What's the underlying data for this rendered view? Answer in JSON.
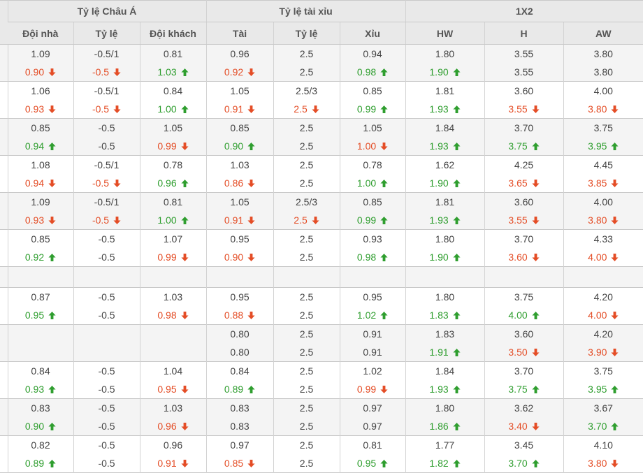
{
  "table": {
    "colors": {
      "header_bg": "#e9e9e9",
      "row_alt_bg": "#f4f4f4",
      "row_bg": "#ffffff",
      "border": "#c9c9c9",
      "text": "#444444",
      "header_text": "#555555",
      "up_green": "#2f9e2f",
      "down_red": "#e44d26"
    },
    "group_headers": [
      {
        "label": "Tỷ lệ Châu Á",
        "span": 3
      },
      {
        "label": "Tỷ lệ tài xỉu",
        "span": 3
      },
      {
        "label": "1X2",
        "span": 3
      }
    ],
    "column_headers": [
      "Đội nhà",
      "Tỷ lệ",
      "Đội khách",
      "Tài",
      "Tỷ lệ",
      "Xỉu",
      "HW",
      "H",
      "AW"
    ],
    "blocks": [
      {
        "shade": "gray",
        "rows": [
          [
            {
              "v": "1.09"
            },
            {
              "v": "-0.5/1"
            },
            {
              "v": "0.81"
            },
            {
              "v": "0.96"
            },
            {
              "v": "2.5"
            },
            {
              "v": "0.94"
            },
            {
              "v": "1.80"
            },
            {
              "v": "3.55"
            },
            {
              "v": "3.80"
            }
          ],
          [
            {
              "v": "0.90",
              "t": "down"
            },
            {
              "v": "-0.5",
              "t": "down"
            },
            {
              "v": "1.03",
              "t": "up"
            },
            {
              "v": "0.92",
              "t": "down"
            },
            {
              "v": "2.5"
            },
            {
              "v": "0.98",
              "t": "up"
            },
            {
              "v": "1.90",
              "t": "up"
            },
            {
              "v": "3.55"
            },
            {
              "v": "3.80"
            }
          ]
        ]
      },
      {
        "shade": "white",
        "rows": [
          [
            {
              "v": "1.06"
            },
            {
              "v": "-0.5/1"
            },
            {
              "v": "0.84"
            },
            {
              "v": "1.05"
            },
            {
              "v": "2.5/3"
            },
            {
              "v": "0.85"
            },
            {
              "v": "1.81"
            },
            {
              "v": "3.60"
            },
            {
              "v": "4.00"
            }
          ],
          [
            {
              "v": "0.93",
              "t": "down"
            },
            {
              "v": "-0.5",
              "t": "down"
            },
            {
              "v": "1.00",
              "t": "up"
            },
            {
              "v": "0.91",
              "t": "down"
            },
            {
              "v": "2.5",
              "t": "down"
            },
            {
              "v": "0.99",
              "t": "up"
            },
            {
              "v": "1.93",
              "t": "up"
            },
            {
              "v": "3.55",
              "t": "down"
            },
            {
              "v": "3.80",
              "t": "down"
            }
          ]
        ]
      },
      {
        "shade": "gray",
        "rows": [
          [
            {
              "v": "0.85"
            },
            {
              "v": "-0.5"
            },
            {
              "v": "1.05"
            },
            {
              "v": "0.85"
            },
            {
              "v": "2.5"
            },
            {
              "v": "1.05"
            },
            {
              "v": "1.84"
            },
            {
              "v": "3.70"
            },
            {
              "v": "3.75"
            }
          ],
          [
            {
              "v": "0.94",
              "t": "up"
            },
            {
              "v": "-0.5"
            },
            {
              "v": "0.99",
              "t": "down"
            },
            {
              "v": "0.90",
              "t": "up"
            },
            {
              "v": "2.5"
            },
            {
              "v": "1.00",
              "t": "down"
            },
            {
              "v": "1.93",
              "t": "up"
            },
            {
              "v": "3.75",
              "t": "up"
            },
            {
              "v": "3.95",
              "t": "up"
            }
          ]
        ]
      },
      {
        "shade": "white",
        "rows": [
          [
            {
              "v": "1.08"
            },
            {
              "v": "-0.5/1"
            },
            {
              "v": "0.78"
            },
            {
              "v": "1.03"
            },
            {
              "v": "2.5"
            },
            {
              "v": "0.78"
            },
            {
              "v": "1.62"
            },
            {
              "v": "4.25"
            },
            {
              "v": "4.45"
            }
          ],
          [
            {
              "v": "0.94",
              "t": "down"
            },
            {
              "v": "-0.5",
              "t": "down"
            },
            {
              "v": "0.96",
              "t": "up"
            },
            {
              "v": "0.86",
              "t": "down"
            },
            {
              "v": "2.5"
            },
            {
              "v": "1.00",
              "t": "up"
            },
            {
              "v": "1.90",
              "t": "up"
            },
            {
              "v": "3.65",
              "t": "down"
            },
            {
              "v": "3.85",
              "t": "down"
            }
          ]
        ]
      },
      {
        "shade": "gray",
        "rows": [
          [
            {
              "v": "1.09"
            },
            {
              "v": "-0.5/1"
            },
            {
              "v": "0.81"
            },
            {
              "v": "1.05"
            },
            {
              "v": "2.5/3"
            },
            {
              "v": "0.85"
            },
            {
              "v": "1.81"
            },
            {
              "v": "3.60"
            },
            {
              "v": "4.00"
            }
          ],
          [
            {
              "v": "0.93",
              "t": "down"
            },
            {
              "v": "-0.5",
              "t": "down"
            },
            {
              "v": "1.00",
              "t": "up"
            },
            {
              "v": "0.91",
              "t": "down"
            },
            {
              "v": "2.5",
              "t": "down"
            },
            {
              "v": "0.99",
              "t": "up"
            },
            {
              "v": "1.93",
              "t": "up"
            },
            {
              "v": "3.55",
              "t": "down"
            },
            {
              "v": "3.80",
              "t": "down"
            }
          ]
        ]
      },
      {
        "shade": "white",
        "rows": [
          [
            {
              "v": "0.85"
            },
            {
              "v": "-0.5"
            },
            {
              "v": "1.07"
            },
            {
              "v": "0.95"
            },
            {
              "v": "2.5"
            },
            {
              "v": "0.93"
            },
            {
              "v": "1.80"
            },
            {
              "v": "3.70"
            },
            {
              "v": "4.33"
            }
          ],
          [
            {
              "v": "0.92",
              "t": "up"
            },
            {
              "v": "-0.5"
            },
            {
              "v": "0.99",
              "t": "down"
            },
            {
              "v": "0.90",
              "t": "down"
            },
            {
              "v": "2.5"
            },
            {
              "v": "0.98",
              "t": "up"
            },
            {
              "v": "1.90",
              "t": "up"
            },
            {
              "v": "3.60",
              "t": "down"
            },
            {
              "v": "4.00",
              "t": "down"
            }
          ]
        ]
      },
      {
        "shade": "gray",
        "spacer": true,
        "rows": [
          [
            {
              "v": ""
            },
            {
              "v": ""
            },
            {
              "v": ""
            },
            {
              "v": ""
            },
            {
              "v": ""
            },
            {
              "v": ""
            },
            {
              "v": ""
            },
            {
              "v": ""
            },
            {
              "v": ""
            }
          ]
        ]
      },
      {
        "shade": "white",
        "rows": [
          [
            {
              "v": "0.87"
            },
            {
              "v": "-0.5"
            },
            {
              "v": "1.03"
            },
            {
              "v": "0.95"
            },
            {
              "v": "2.5"
            },
            {
              "v": "0.95"
            },
            {
              "v": "1.80"
            },
            {
              "v": "3.75"
            },
            {
              "v": "4.20"
            }
          ],
          [
            {
              "v": "0.95",
              "t": "up"
            },
            {
              "v": "-0.5"
            },
            {
              "v": "0.98",
              "t": "down"
            },
            {
              "v": "0.88",
              "t": "down"
            },
            {
              "v": "2.5"
            },
            {
              "v": "1.02",
              "t": "up"
            },
            {
              "v": "1.83",
              "t": "up"
            },
            {
              "v": "4.00",
              "t": "up"
            },
            {
              "v": "4.00",
              "t": "down"
            }
          ]
        ]
      },
      {
        "shade": "gray",
        "rows": [
          [
            {
              "v": ""
            },
            {
              "v": ""
            },
            {
              "v": ""
            },
            {
              "v": "0.80"
            },
            {
              "v": "2.5"
            },
            {
              "v": "0.91"
            },
            {
              "v": "1.83"
            },
            {
              "v": "3.60"
            },
            {
              "v": "4.20"
            }
          ],
          [
            {
              "v": ""
            },
            {
              "v": ""
            },
            {
              "v": ""
            },
            {
              "v": "0.80"
            },
            {
              "v": "2.5"
            },
            {
              "v": "0.91"
            },
            {
              "v": "1.91",
              "t": "up"
            },
            {
              "v": "3.50",
              "t": "down"
            },
            {
              "v": "3.90",
              "t": "down"
            }
          ]
        ]
      },
      {
        "shade": "white",
        "rows": [
          [
            {
              "v": "0.84"
            },
            {
              "v": "-0.5"
            },
            {
              "v": "1.04"
            },
            {
              "v": "0.84"
            },
            {
              "v": "2.5"
            },
            {
              "v": "1.02"
            },
            {
              "v": "1.84"
            },
            {
              "v": "3.70"
            },
            {
              "v": "3.75"
            }
          ],
          [
            {
              "v": "0.93",
              "t": "up"
            },
            {
              "v": "-0.5"
            },
            {
              "v": "0.95",
              "t": "down"
            },
            {
              "v": "0.89",
              "t": "up"
            },
            {
              "v": "2.5"
            },
            {
              "v": "0.99",
              "t": "down"
            },
            {
              "v": "1.93",
              "t": "up"
            },
            {
              "v": "3.75",
              "t": "up"
            },
            {
              "v": "3.95",
              "t": "up"
            }
          ]
        ]
      },
      {
        "shade": "gray",
        "rows": [
          [
            {
              "v": "0.83"
            },
            {
              "v": "-0.5"
            },
            {
              "v": "1.03"
            },
            {
              "v": "0.83"
            },
            {
              "v": "2.5"
            },
            {
              "v": "0.97"
            },
            {
              "v": "1.80"
            },
            {
              "v": "3.62"
            },
            {
              "v": "3.67"
            }
          ],
          [
            {
              "v": "0.90",
              "t": "up"
            },
            {
              "v": "-0.5"
            },
            {
              "v": "0.96",
              "t": "down"
            },
            {
              "v": "0.83"
            },
            {
              "v": "2.5"
            },
            {
              "v": "0.97"
            },
            {
              "v": "1.86",
              "t": "up"
            },
            {
              "v": "3.40",
              "t": "down"
            },
            {
              "v": "3.70",
              "t": "up"
            }
          ]
        ]
      },
      {
        "shade": "white",
        "rows": [
          [
            {
              "v": "0.82"
            },
            {
              "v": "-0.5"
            },
            {
              "v": "0.96"
            },
            {
              "v": "0.97"
            },
            {
              "v": "2.5"
            },
            {
              "v": "0.81"
            },
            {
              "v": "1.77"
            },
            {
              "v": "3.45"
            },
            {
              "v": "4.10"
            }
          ],
          [
            {
              "v": "0.89",
              "t": "up"
            },
            {
              "v": "-0.5"
            },
            {
              "v": "0.91",
              "t": "down"
            },
            {
              "v": "0.85",
              "t": "down"
            },
            {
              "v": "2.5"
            },
            {
              "v": "0.95",
              "t": "up"
            },
            {
              "v": "1.82",
              "t": "up"
            },
            {
              "v": "3.70",
              "t": "up"
            },
            {
              "v": "3.80",
              "t": "down"
            }
          ]
        ]
      }
    ]
  }
}
